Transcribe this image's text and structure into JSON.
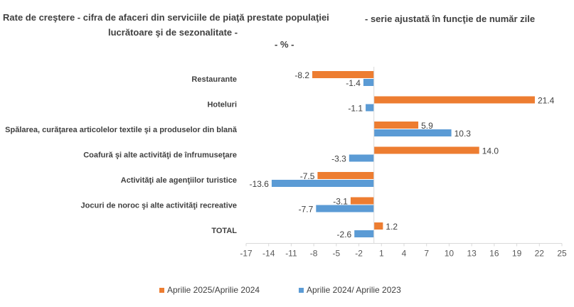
{
  "chart_data": {
    "type": "bar",
    "orientation": "horizontal",
    "title_lines": [
      "Rate de creştere - cifra de afaceri din serviciile de piaţă prestate populaţiei",
      "- serie ajustată în funcţie de număr zile",
      "lucrătoare şi de sezonalitate -",
      "- % -"
    ],
    "categories": [
      "Restaurante",
      "Hoteluri",
      "Spălarea, curăţarea articolelor textile şi a produselor din blană",
      "Coafură şi alte activităţi de înfrumuseţare",
      "Activităţi ale agenţiilor turistice",
      "Jocuri de noroc şi alte activităţi recreative",
      "TOTAL"
    ],
    "series": [
      {
        "name": "Aprilie 2025/Aprilie 2024",
        "color": "#ED7D31",
        "values": [
          -8.2,
          21.4,
          5.9,
          14.0,
          -7.5,
          -3.1,
          1.2
        ],
        "labels": [
          "-8.2",
          "21.4",
          "5.9",
          "14.0",
          "-7.5",
          "-3.1",
          "1.2"
        ]
      },
      {
        "name": "Aprilie 2024/ Aprilie 2023",
        "color": "#5B9BD5",
        "values": [
          -1.4,
          -1.1,
          10.3,
          -3.3,
          -13.6,
          -7.7,
          -2.6
        ],
        "labels": [
          "-1.4",
          "-1.1",
          "10.3",
          "-3.3",
          "-13.6",
          "-7.7",
          "-2.6"
        ]
      }
    ],
    "xlim": [
      -17,
      25
    ],
    "xticks": [
      -17,
      -14,
      -11,
      -8,
      -5,
      -2,
      1,
      4,
      7,
      10,
      13,
      16,
      19,
      22,
      25
    ],
    "xtick_labels": [
      "-17",
      "-14",
      "-11",
      "-8",
      "-5",
      "-2",
      "1",
      "4",
      "7",
      "10",
      "13",
      "16",
      "19",
      "22",
      "25"
    ],
    "grid": false,
    "legend_position": "bottom"
  }
}
